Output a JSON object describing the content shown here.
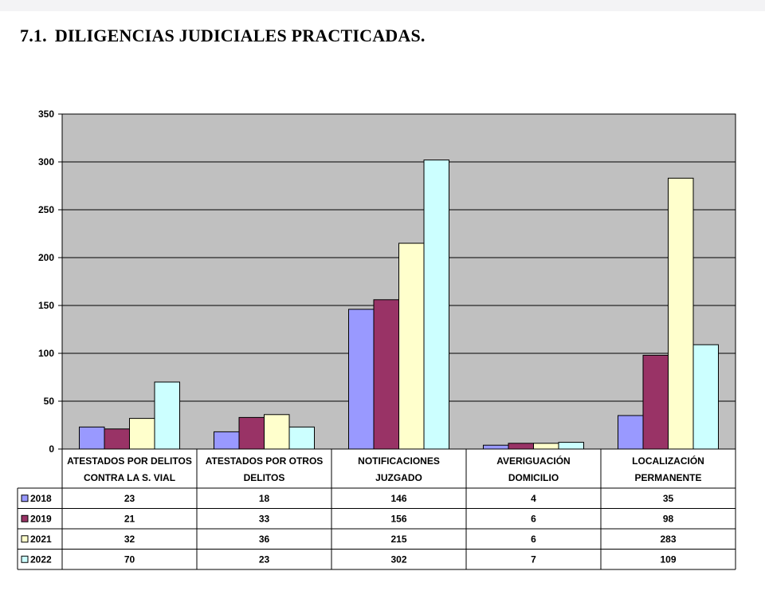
{
  "page": {
    "heading_number": "7.1.",
    "heading_text": "DILIGENCIAS JUDICIALES PRACTICADAS."
  },
  "chart_data": {
    "type": "bar",
    "title": "",
    "xlabel": "",
    "ylabel": "",
    "ylim": [
      0,
      350
    ],
    "yticks": [
      0,
      50,
      100,
      150,
      200,
      250,
      300,
      350
    ],
    "grid": true,
    "plot_background": "#c0c0c0",
    "legend_position": "data-table-below",
    "categories": [
      [
        "ATESTADOS POR DELITOS",
        "CONTRA LA S. VIAL"
      ],
      [
        "ATESTADOS POR OTROS",
        "DELITOS"
      ],
      [
        "NOTIFICACIONES",
        "JUZGADO"
      ],
      [
        "AVERIGUACIÓN",
        "DOMICILIO"
      ],
      [
        "LOCALIZACIÓN",
        "PERMANENTE"
      ]
    ],
    "series": [
      {
        "name": "2018",
        "color": "#9999ff",
        "values": [
          23,
          18,
          146,
          4,
          35
        ]
      },
      {
        "name": "2019",
        "color": "#993366",
        "values": [
          21,
          33,
          156,
          6,
          98
        ]
      },
      {
        "name": "2021",
        "color": "#ffffcc",
        "values": [
          32,
          36,
          215,
          6,
          283
        ]
      },
      {
        "name": "2022",
        "color": "#ccffff",
        "values": [
          70,
          23,
          302,
          7,
          109
        ]
      }
    ]
  }
}
